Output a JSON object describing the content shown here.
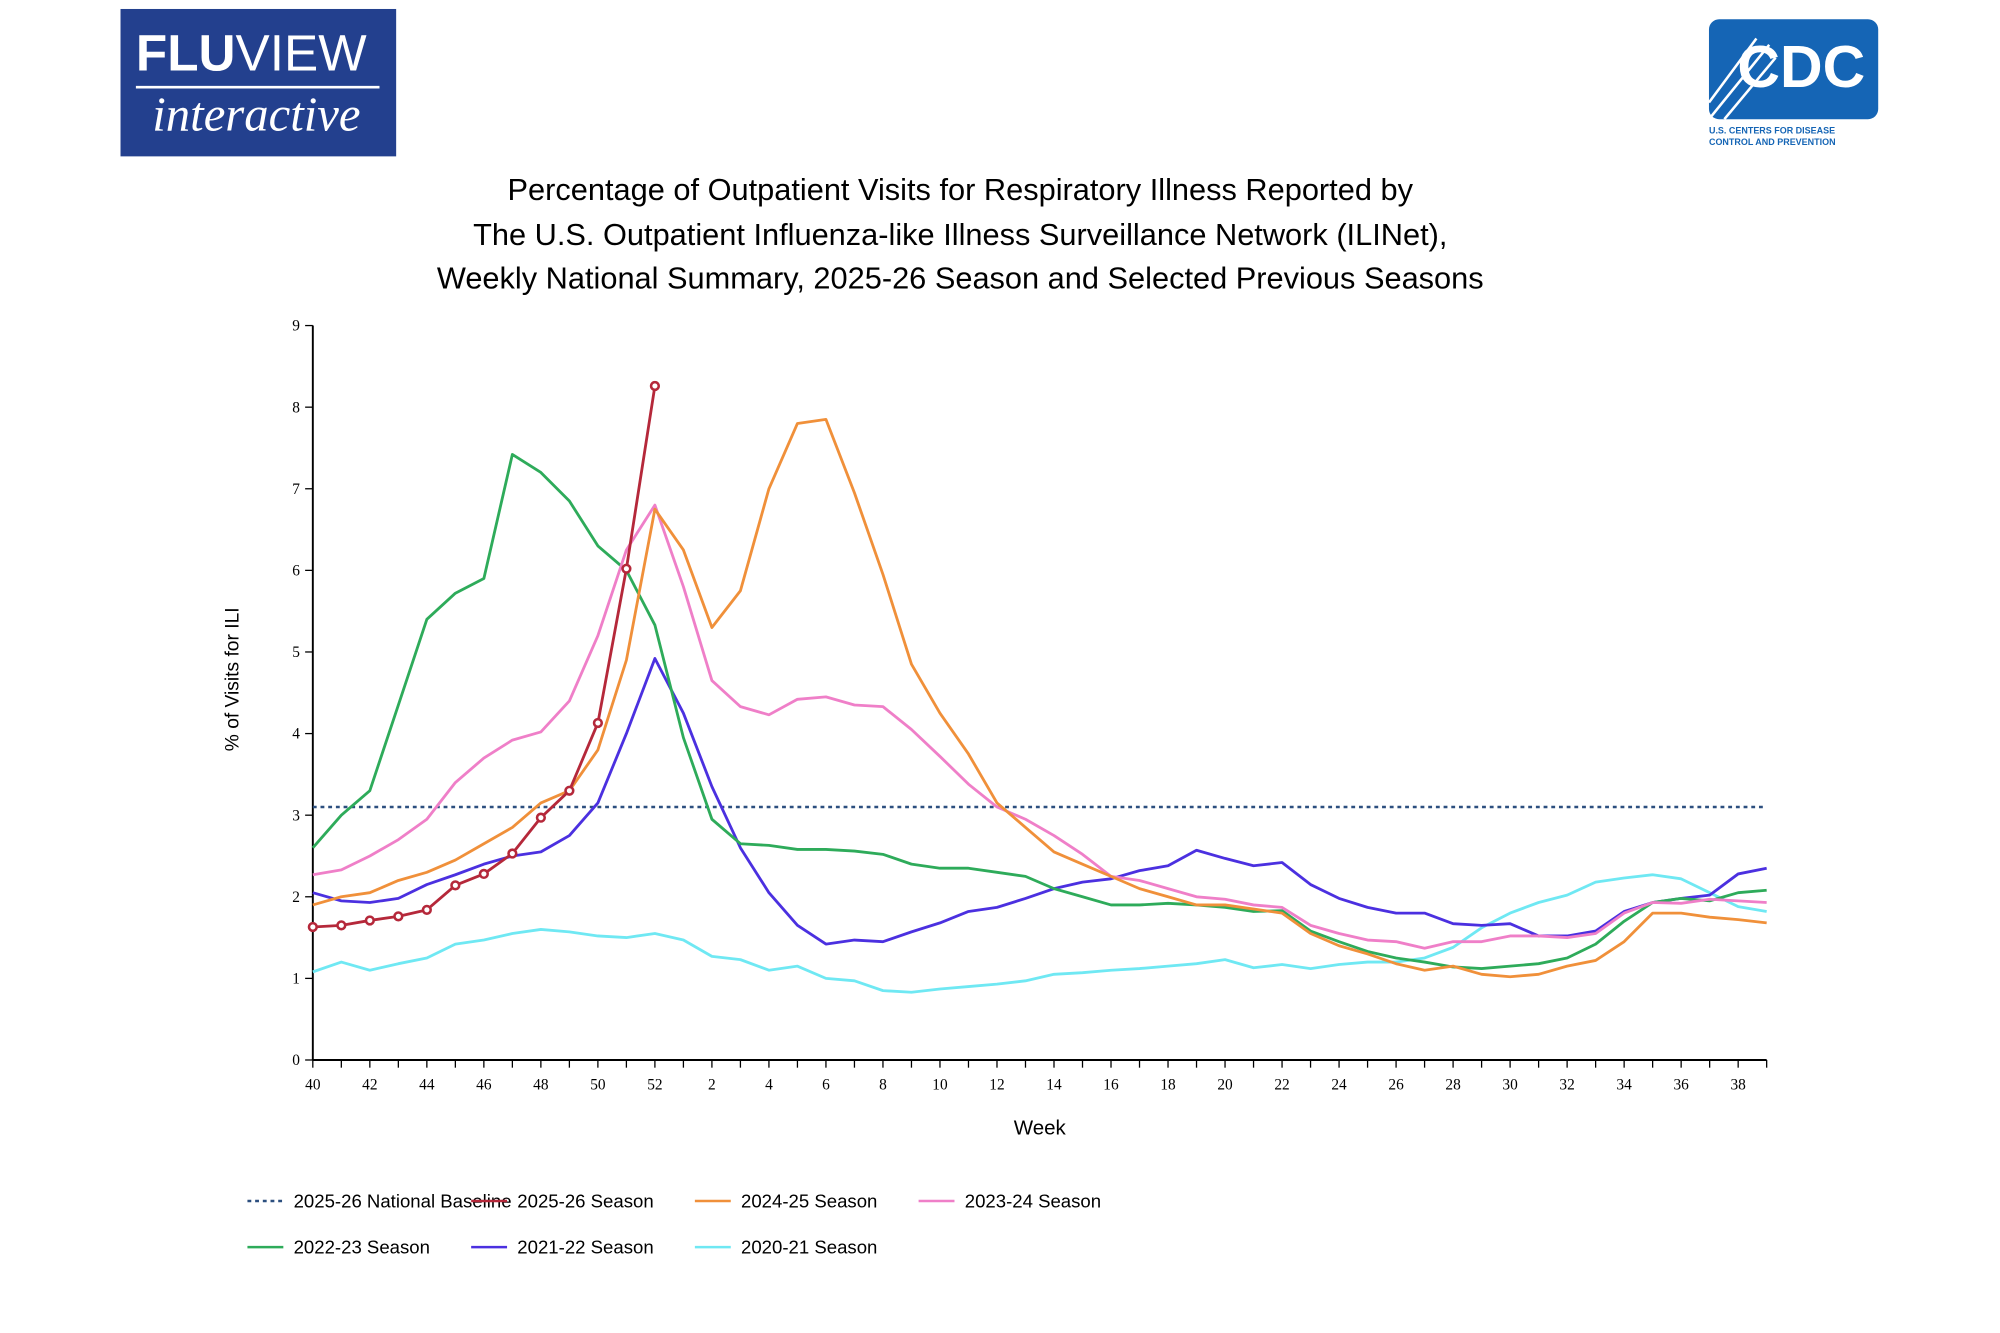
{
  "logos": {
    "fluview": {
      "bold": "FLU",
      "rest": "VIEW",
      "sub": "interactive"
    },
    "cdc": {
      "mark": "CDC",
      "line1": "U.S. CENTERS FOR DISEASE",
      "line2": "CONTROL AND PREVENTION"
    }
  },
  "chart_data": {
    "type": "line",
    "title": [
      "Percentage of Outpatient Visits for Respiratory Illness Reported by",
      "The U.S. Outpatient Influenza-like Illness Surveillance Network (ILINet),",
      "Weekly National Summary, 2025-26 Season and Selected Previous Seasons"
    ],
    "y_label": "% of Visits for ILI",
    "x_label": "Week",
    "categories": [
      "40",
      null,
      "42",
      null,
      "44",
      null,
      "46",
      null,
      "48",
      null,
      "50",
      null,
      "52",
      null,
      "2",
      null,
      "4",
      null,
      "6",
      null,
      "8",
      null,
      "10",
      null,
      "12",
      null,
      "14",
      null,
      "16",
      null,
      "18",
      null,
      "20",
      null,
      "22",
      null,
      "24",
      null,
      "26",
      null,
      "28",
      null,
      "30",
      null,
      "32",
      null,
      "34",
      null,
      "36",
      null,
      "38",
      null
    ],
    "ylim": [
      0,
      9
    ],
    "yticks": [
      0,
      1,
      2,
      3,
      4,
      5,
      6,
      7,
      8,
      9
    ],
    "baseline": {
      "name": "2025-26 National Baseline",
      "color": "#2c4f7f",
      "value": 3.1
    },
    "series": [
      {
        "name": "2025-26 Season",
        "color": "#b5283a",
        "markers": true,
        "values": [
          1.63,
          1.65,
          1.71,
          1.76,
          1.84,
          2.14,
          2.28,
          2.53,
          2.97,
          3.3,
          4.13,
          6.02,
          8.26,
          null,
          null,
          null,
          null,
          null,
          null,
          null,
          null,
          null,
          null,
          null,
          null,
          null,
          null,
          null,
          null,
          null,
          null,
          null,
          null,
          null,
          null,
          null,
          null,
          null,
          null,
          null,
          null,
          null,
          null,
          null,
          null,
          null,
          null,
          null,
          null,
          null,
          null,
          null
        ]
      },
      {
        "name": "2024-25 Season",
        "color": "#f0903a",
        "values": [
          1.9,
          2.0,
          2.05,
          2.2,
          2.3,
          2.45,
          2.65,
          2.85,
          3.15,
          3.3,
          3.8,
          4.9,
          6.75,
          6.25,
          5.3,
          5.75,
          7.0,
          7.8,
          7.85,
          6.95,
          5.95,
          4.85,
          4.25,
          3.75,
          3.15,
          2.85,
          2.55,
          2.4,
          2.25,
          2.1,
          2.0,
          1.9,
          1.9,
          1.85,
          1.8,
          1.55,
          1.4,
          1.3,
          1.18,
          1.1,
          1.15,
          1.05,
          1.02,
          1.05,
          1.15,
          1.22,
          1.45,
          1.8,
          1.8,
          1.75,
          1.72,
          1.68
        ]
      },
      {
        "name": "2023-24 Season",
        "color": "#ef7fc8",
        "values": [
          2.27,
          2.33,
          2.5,
          2.7,
          2.95,
          3.4,
          3.7,
          3.92,
          4.02,
          4.4,
          5.2,
          6.25,
          6.8,
          5.8,
          4.65,
          4.33,
          4.23,
          4.42,
          4.45,
          4.35,
          4.33,
          4.05,
          3.72,
          3.38,
          3.1,
          2.95,
          2.75,
          2.52,
          2.25,
          2.2,
          2.1,
          2.0,
          1.97,
          1.9,
          1.87,
          1.65,
          1.55,
          1.47,
          1.45,
          1.37,
          1.45,
          1.45,
          1.52,
          1.52,
          1.5,
          1.55,
          1.8,
          1.93,
          1.92,
          1.97,
          1.95,
          1.93
        ]
      },
      {
        "name": "2022-23 Season",
        "color": "#2eab5a",
        "values": [
          2.6,
          3.0,
          3.3,
          4.35,
          5.4,
          5.72,
          5.9,
          7.42,
          7.2,
          6.85,
          6.3,
          6.0,
          5.33,
          3.95,
          2.95,
          2.65,
          2.63,
          2.58,
          2.58,
          2.56,
          2.52,
          2.4,
          2.35,
          2.35,
          2.3,
          2.25,
          2.1,
          2.0,
          1.9,
          1.9,
          1.92,
          1.9,
          1.87,
          1.82,
          1.83,
          1.58,
          1.45,
          1.33,
          1.25,
          1.2,
          1.14,
          1.12,
          1.15,
          1.18,
          1.25,
          1.42,
          1.7,
          1.93,
          1.98,
          1.95,
          2.05,
          2.08
        ]
      },
      {
        "name": "2021-22 Season",
        "color": "#4b30e0",
        "values": [
          2.05,
          1.95,
          1.93,
          1.98,
          2.15,
          2.27,
          2.4,
          2.5,
          2.55,
          2.75,
          3.15,
          4.0,
          4.92,
          4.25,
          3.35,
          2.6,
          2.05,
          1.65,
          1.42,
          1.47,
          1.45,
          1.57,
          1.68,
          1.82,
          1.87,
          1.98,
          2.1,
          2.18,
          2.22,
          2.32,
          2.38,
          2.57,
          2.47,
          2.38,
          2.42,
          2.15,
          1.98,
          1.87,
          1.8,
          1.8,
          1.67,
          1.65,
          1.67,
          1.52,
          1.52,
          1.58,
          1.82,
          1.93,
          1.98,
          2.02,
          2.28,
          2.35
        ]
      },
      {
        "name": "2020-21 Season",
        "color": "#6fe8f3",
        "values": [
          1.08,
          1.2,
          1.1,
          1.18,
          1.25,
          1.42,
          1.47,
          1.55,
          1.6,
          1.57,
          1.52,
          1.5,
          1.55,
          1.47,
          1.27,
          1.23,
          1.1,
          1.15,
          1.0,
          0.97,
          0.85,
          0.83,
          0.87,
          0.9,
          0.93,
          0.97,
          1.05,
          1.07,
          1.1,
          1.12,
          1.15,
          1.18,
          1.23,
          1.13,
          1.17,
          1.12,
          1.17,
          1.2,
          1.2,
          1.25,
          1.38,
          1.62,
          1.8,
          1.93,
          2.02,
          2.18,
          2.23,
          2.27,
          2.22,
          2.05,
          1.88,
          1.82
        ]
      }
    ]
  }
}
